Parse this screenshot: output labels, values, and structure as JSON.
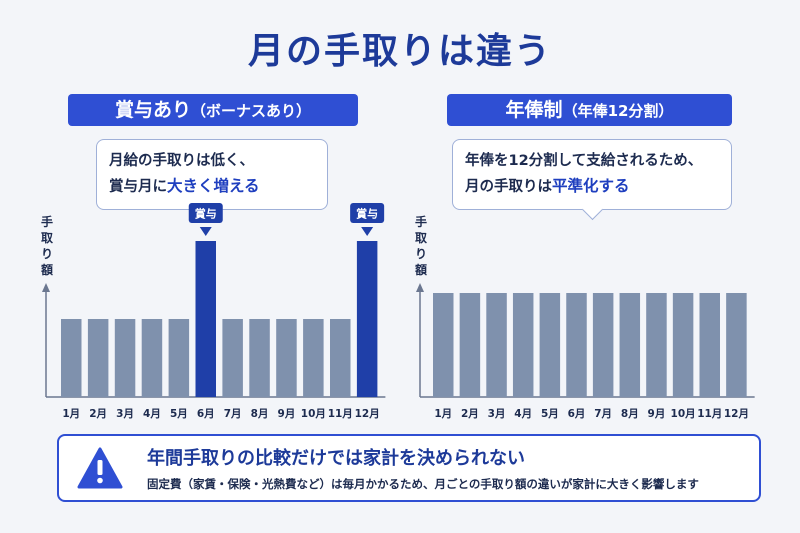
{
  "page": {
    "title": "月の手取りは違う"
  },
  "left_panel": {
    "tag_main": "賞与あり",
    "tag_sub": "（ボーナスあり）",
    "bubble_line1": "月給の手取りは低く、",
    "bubble_line2_prefix": "賞与月に",
    "bubble_line2_highlight": "大きく増える",
    "bonus_label": "賞与"
  },
  "right_panel": {
    "tag_main": "年俸制",
    "tag_sub": "（年俸12分割）",
    "bubble_line1": "年俸を12分割して支給されるため、",
    "bubble_line2_prefix": "月の手取りは",
    "bubble_line2_highlight": "平準化する"
  },
  "warning": {
    "icon": "warning-triangle-icon",
    "title": "年間手取りの比較だけでは家計を決められない",
    "body": "固定費（家賃・保険・光熱費など）は毎月かかるため、月ごとの手取り額の違いが家計に大きく影響します"
  },
  "colors": {
    "accent": "#2f4fd3",
    "bar_normal": "#7f91ad",
    "bar_bonus": "#1f3fa8",
    "title": "#1d3a99"
  },
  "chart_data": [
    {
      "type": "bar",
      "ylabel": "手取り額",
      "categories": [
        "1月",
        "2月",
        "3月",
        "4月",
        "5月",
        "6月",
        "7月",
        "8月",
        "9月",
        "10月",
        "11月",
        "12月"
      ],
      "values": [
        30,
        30,
        30,
        30,
        30,
        60,
        30,
        30,
        30,
        30,
        30,
        60
      ],
      "ylim": [
        0,
        70
      ],
      "annotations": [
        {
          "category": "6月",
          "text": "賞与"
        },
        {
          "category": "12月",
          "text": "賞与"
        }
      ]
    },
    {
      "type": "bar",
      "ylabel": "手取り額",
      "categories": [
        "1月",
        "2月",
        "3月",
        "4月",
        "5月",
        "6月",
        "7月",
        "8月",
        "9月",
        "10月",
        "11月",
        "12月"
      ],
      "values": [
        40,
        40,
        40,
        40,
        40,
        40,
        40,
        40,
        40,
        40,
        40,
        40
      ],
      "ylim": [
        0,
        70
      ]
    }
  ]
}
